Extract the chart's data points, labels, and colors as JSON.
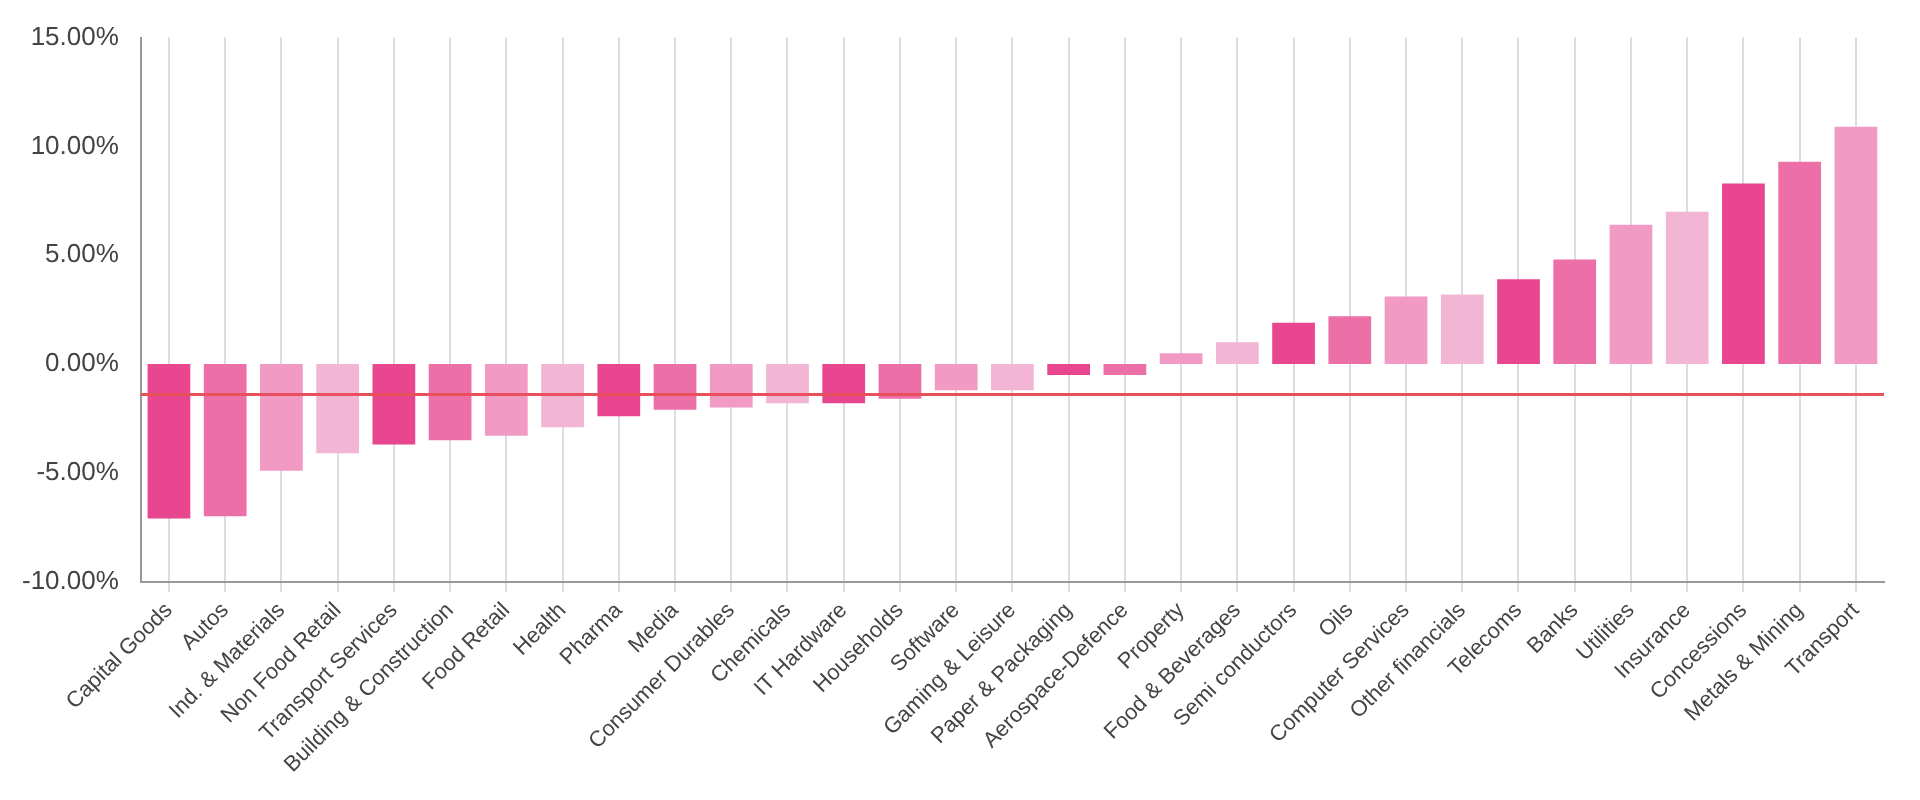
{
  "chart_data": {
    "type": "bar",
    "categories": [
      "Capital Goods",
      "Autos",
      "Ind. & Materials",
      "Non Food Retail",
      "Transport Services",
      "Building & Construction",
      "Food Retail",
      "Health",
      "Pharma",
      "Media",
      "Consumer Durables",
      "Chemicals",
      "IT Hardware",
      "Households",
      "Software",
      "Gaming & Leisure",
      "Paper & Packaging",
      "Aerospace-Defence",
      "Property",
      "Food & Beverages",
      "Semi conductors",
      "Oils",
      "Computer Services",
      "Other financials",
      "Telecoms",
      "Banks",
      "Utilities",
      "Insurance",
      "Concessions",
      "Metals & Mining",
      "Transport"
    ],
    "values": [
      -7.1,
      -7.0,
      -4.9,
      -4.1,
      -3.7,
      -3.5,
      -3.3,
      -2.9,
      -2.4,
      -2.1,
      -2.0,
      -1.8,
      -1.8,
      -1.6,
      -1.2,
      -1.2,
      -0.5,
      -0.5,
      0.5,
      1.0,
      1.9,
      2.2,
      3.1,
      3.2,
      3.9,
      4.8,
      6.4,
      7.0,
      8.3,
      9.3,
      10.9
    ],
    "colors": [
      "#e8468f",
      "#ec6fa8",
      "#f09ac4",
      "#f3b5d4",
      "#e8468f",
      "#ec6fa8",
      "#f09ac4",
      "#f3b5d4",
      "#e8468f",
      "#ec6fa8",
      "#f09ac4",
      "#f3b5d4",
      "#e8468f",
      "#ec6fa8",
      "#f09ac4",
      "#f3b5d4",
      "#e8468f",
      "#ec6fa8",
      "#f09ac4",
      "#f3b5d4",
      "#e8468f",
      "#ec6fa8",
      "#f09ac4",
      "#f3b5d4",
      "#e8468f",
      "#ec6fa8",
      "#f09ac4",
      "#f3b5d4",
      "#e8468f",
      "#ec6fa8",
      "#f09ac4"
    ],
    "ylim": [
      -10,
      15
    ],
    "yticks": [
      {
        "value": -10,
        "label": "-10.00%"
      },
      {
        "value": -5,
        "label": "-5.00%"
      },
      {
        "value": 0,
        "label": "0.00%"
      },
      {
        "value": 5,
        "label": "5.00%"
      },
      {
        "value": 10,
        "label": "10.00%"
      },
      {
        "value": 15,
        "label": "15.00%"
      }
    ],
    "ref_lines": [
      {
        "axis": "y",
        "value": -1.4,
        "color": "#e8505b"
      }
    ],
    "grid": "x",
    "legend": false
  }
}
